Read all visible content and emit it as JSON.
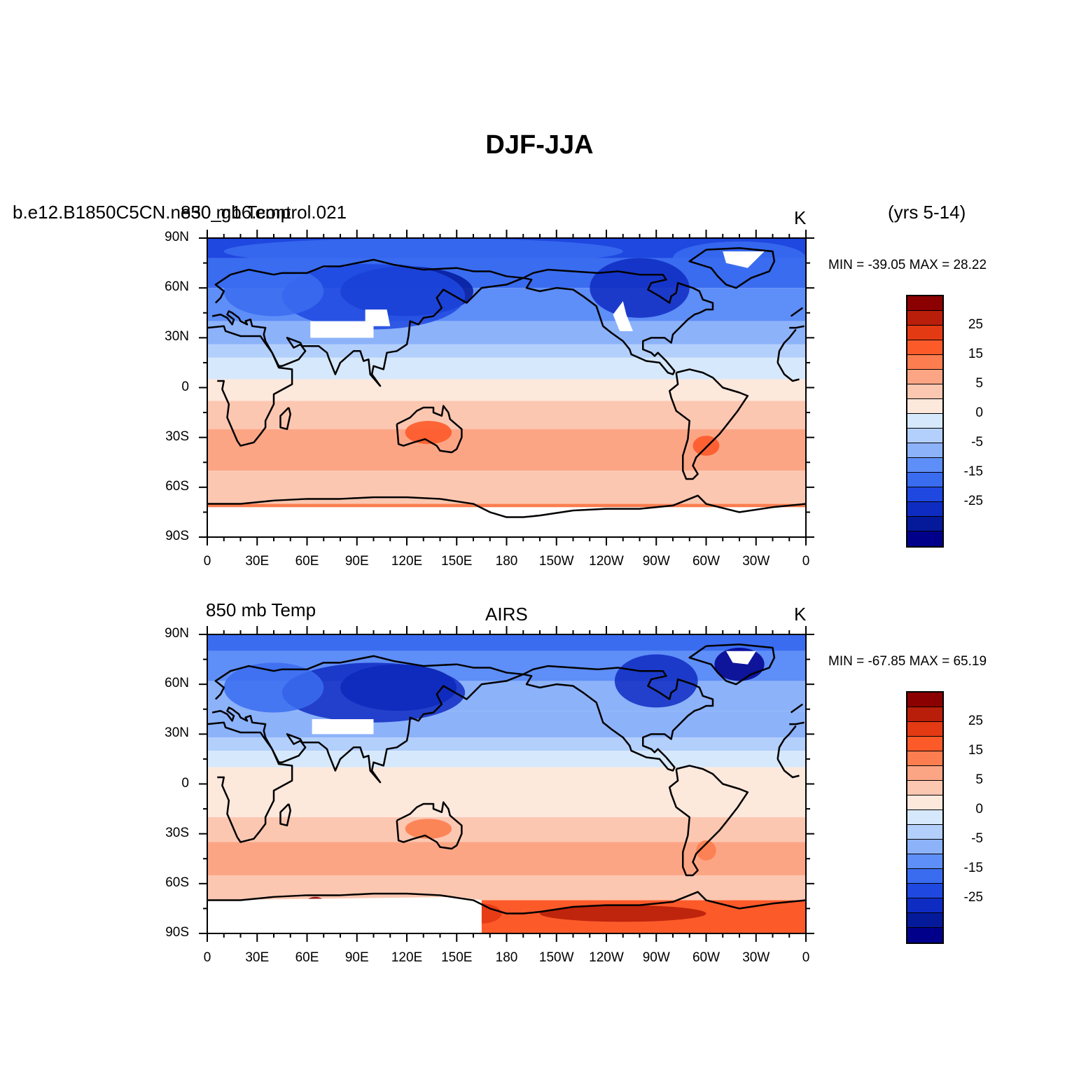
{
  "page_title": "DJF-JJA",
  "panels": [
    {
      "left_label": "b.e12.B1850C5CN.ne30_g16.control.021",
      "left_label_overlap": "850 mb Temp",
      "center_label": "",
      "right_label": "K",
      "years_label": "(yrs 5-14)",
      "min_max": "MIN = -39.05  MAX =  28.22"
    },
    {
      "left_label": "850 mb Temp",
      "center_label": "AIRS",
      "right_label": "K",
      "years_label": "",
      "min_max": "MIN = -67.85  MAX =  65.19"
    }
  ],
  "lat_ticks": [
    "90N",
    "60N",
    "30N",
    "0",
    "30S",
    "60S",
    "90S"
  ],
  "lon_ticks": [
    "0",
    "30E",
    "60E",
    "90E",
    "120E",
    "150E",
    "180",
    "150W",
    "120W",
    "90W",
    "60W",
    "30W",
    "0"
  ],
  "colorbar": {
    "labels": [
      "25",
      "15",
      "5",
      "0",
      "-5",
      "-15",
      "-25"
    ],
    "colors": [
      "#8b0000",
      "#b81e0a",
      "#e33a14",
      "#fd5a2a",
      "#fc7d4f",
      "#fca585",
      "#fcc7b1",
      "#fde8dc",
      "#d6e8fb",
      "#b3cffb",
      "#8cb2fa",
      "#5e8ef7",
      "#3a6cf0",
      "#1f48e0",
      "#0f2cc2",
      "#041a9a",
      "#00008b"
    ]
  },
  "palette": {
    "land_outline": "#000000",
    "masked": "#ffffff"
  }
}
